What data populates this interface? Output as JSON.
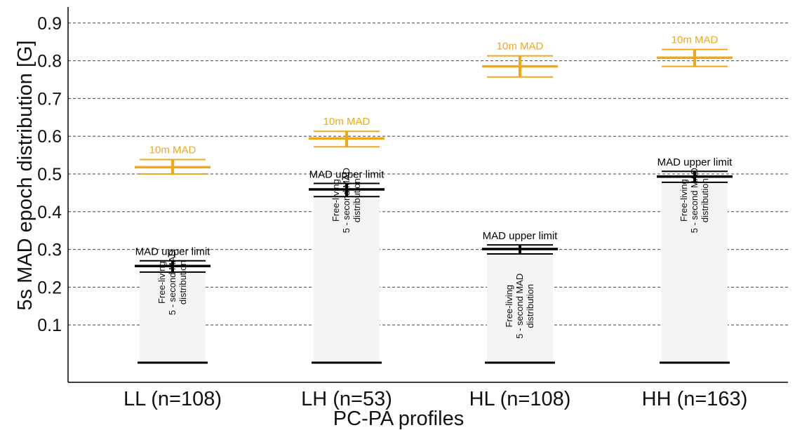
{
  "chart_data": {
    "type": "errorbar",
    "xlabel": "PC-PA profiles",
    "ylabel": "5s MAD epoch distribution [G]",
    "ylim": [
      -0.02,
      0.94
    ],
    "yticks": [
      0.1,
      0.2,
      0.3,
      0.4,
      0.5,
      0.6,
      0.7,
      0.8,
      0.9
    ],
    "ytick_labels": [
      "0.1",
      "0.2",
      "0.3",
      "0.4",
      "0.5",
      "0.6",
      "0.7",
      "0.8",
      "0.9"
    ],
    "grid": "horizontal dashed",
    "categories": [
      "LL (n=108)",
      "LH (n=53)",
      "HL (n=108)",
      "HH (n=163)"
    ],
    "series": [
      {
        "name": "MAD upper limit",
        "color": "#000000",
        "values": [
          0.256,
          0.459,
          0.301,
          0.493
        ],
        "lower": [
          0.24,
          0.44,
          0.288,
          0.478
        ],
        "upper": [
          0.27,
          0.475,
          0.312,
          0.507
        ]
      },
      {
        "name": "10m MAD",
        "color": "#f0a818",
        "values": [
          0.518,
          0.594,
          0.785,
          0.808
        ],
        "lower": [
          0.5,
          0.572,
          0.757,
          0.785
        ],
        "upper": [
          0.538,
          0.613,
          0.813,
          0.83
        ]
      }
    ],
    "baseline": 0.0,
    "distribution_label_line1": "Free-living",
    "distribution_label_line2": "5 - second MAD",
    "distribution_label_line3": "distribution"
  },
  "labels": {
    "mad_upper_limit": "MAD upper limit",
    "ten_min_mad": "10m MAD"
  },
  "colors": {
    "orange": "#f0a818",
    "black": "#000000",
    "grid": "#444444",
    "box_fill": "#f4f4f4"
  }
}
